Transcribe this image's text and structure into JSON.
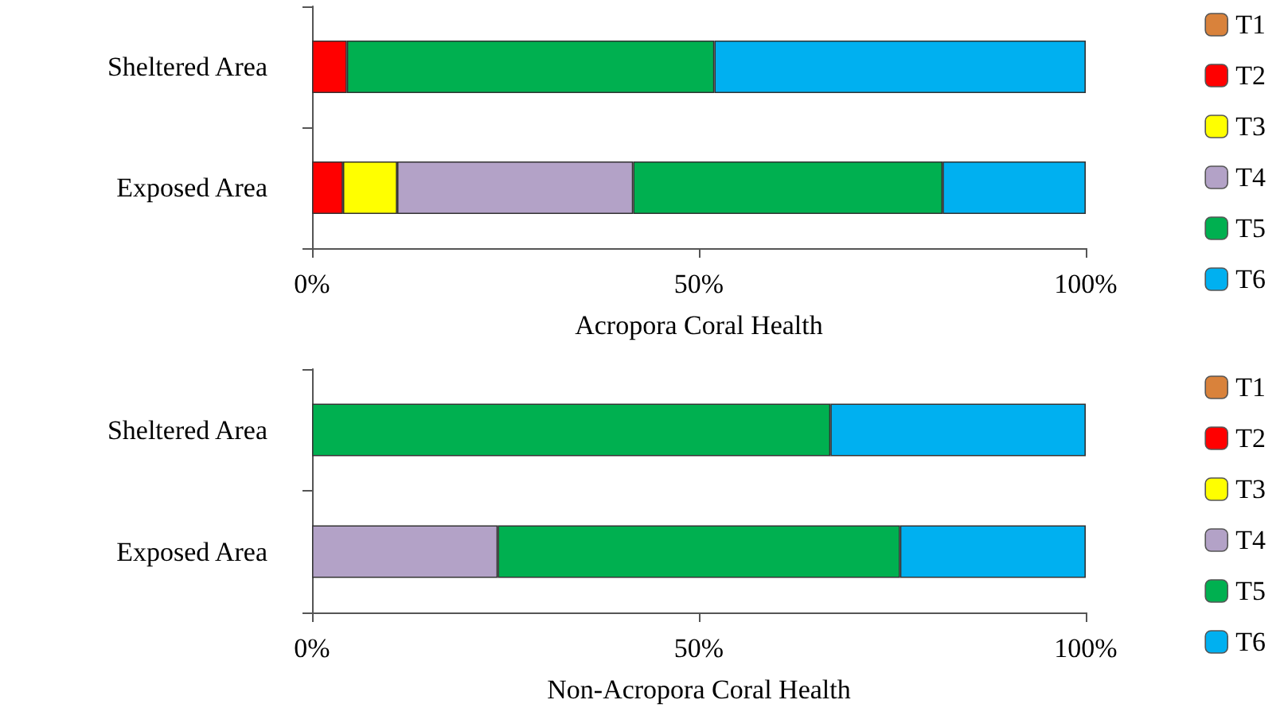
{
  "chart_data": [
    {
      "type": "bar",
      "orientation": "horizontal",
      "stacked": true,
      "xlabel": "Acropora Coral Health",
      "categories": [
        "Sheltered Area",
        "Exposed Area"
      ],
      "xlim": [
        0,
        100
      ],
      "xticks": [
        {
          "value": 0,
          "label": "0%"
        },
        {
          "value": 50,
          "label": "50%"
        },
        {
          "value": 100,
          "label": "100%"
        }
      ],
      "legend": "right",
      "grid": false,
      "series": [
        {
          "name": "T1",
          "color": "#d9823b",
          "values": [
            0,
            0
          ]
        },
        {
          "name": "T2",
          "color": "#ff0000",
          "values": [
            4.5,
            4
          ]
        },
        {
          "name": "T3",
          "color": "#ffff00",
          "values": [
            0,
            7
          ]
        },
        {
          "name": "T4",
          "color": "#b3a2c7",
          "values": [
            0,
            30.5
          ]
        },
        {
          "name": "T5",
          "color": "#00b050",
          "values": [
            47.5,
            40
          ]
        },
        {
          "name": "T6",
          "color": "#00b0f0",
          "values": [
            48,
            18.5
          ]
        }
      ]
    },
    {
      "type": "bar",
      "orientation": "horizontal",
      "stacked": true,
      "xlabel": "Non-Acropora Coral Health",
      "categories": [
        "Sheltered Area",
        "Exposed Area"
      ],
      "xlim": [
        0,
        100
      ],
      "xticks": [
        {
          "value": 0,
          "label": "0%"
        },
        {
          "value": 50,
          "label": "50%"
        },
        {
          "value": 100,
          "label": "100%"
        }
      ],
      "legend": "right",
      "grid": false,
      "series": [
        {
          "name": "T1",
          "color": "#d9823b",
          "values": [
            0,
            0
          ]
        },
        {
          "name": "T2",
          "color": "#ff0000",
          "values": [
            0,
            0
          ]
        },
        {
          "name": "T3",
          "color": "#ffff00",
          "values": [
            0,
            0
          ]
        },
        {
          "name": "T4",
          "color": "#b3a2c7",
          "values": [
            0,
            24
          ]
        },
        {
          "name": "T5",
          "color": "#00b050",
          "values": [
            67,
            52
          ]
        },
        {
          "name": "T6",
          "color": "#00b0f0",
          "values": [
            33,
            24
          ]
        }
      ]
    }
  ]
}
